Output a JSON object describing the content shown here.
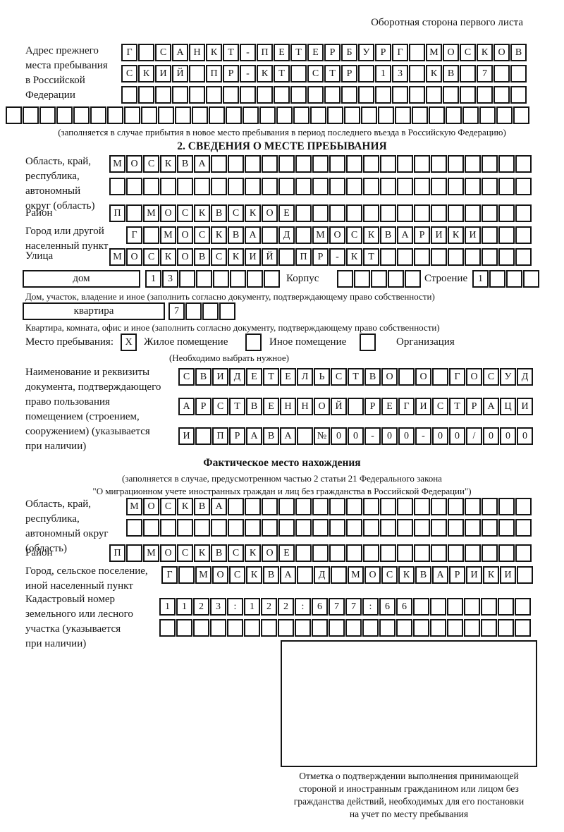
{
  "header": {
    "title": "Оборотная сторона первого листа"
  },
  "prev_address": {
    "label_lines": [
      "Адрес прежнего",
      "места пребывания",
      "в Российской",
      "Федерации"
    ],
    "rows": [
      {
        "text": "Г САНКТ-ПЕТЕРБУРГ МОСКОВ",
        "len": 24
      },
      {
        "text": "СКИЙ ПР-КТ СТР 13 КВ 7",
        "len": 24
      },
      {
        "text": "",
        "len": 24
      },
      {
        "text": "",
        "len": 31
      }
    ],
    "note": "(заполняется в случае прибытия в новое место пребывания в период последнего въезда в Российскую Федерацию)"
  },
  "section2": {
    "title": "2. СВЕДЕНИЯ О МЕСТЕ ПРЕБЫВАНИЯ",
    "region": {
      "label_lines": [
        "Область, край,",
        "республика,",
        "автономный",
        "округ (область)"
      ],
      "rows": [
        {
          "text": "МОСКВА",
          "len": 25
        },
        {
          "text": "",
          "len": 25
        }
      ]
    },
    "district": {
      "label": "Район",
      "row": {
        "text": "П МОСКВСКОЕ",
        "len": 25
      }
    },
    "city": {
      "label_lines": [
        "Город или другой",
        "населенный пункт"
      ],
      "row": {
        "text": "Г МОСКВА Д МОСКВАРИКИ",
        "len": 24
      }
    },
    "street": {
      "label": "Улица",
      "row": {
        "text": "МОСКОВСКИЙ ПР-КТ",
        "len": 25
      }
    },
    "house": {
      "type_label": "дом",
      "row": {
        "text": "13",
        "len": 8
      },
      "korpus_label": "Корпус",
      "korpus_row": {
        "text": "",
        "len": 5
      },
      "stroenie_label": "Строение",
      "stroenie_row": {
        "text": "1",
        "len": 4
      },
      "note": "Дом, участок, владение и иное (заполнить согласно документу, подтверждающему право собственности)"
    },
    "apartment": {
      "type_label": "квартира",
      "row": {
        "text": "7",
        "len": 4
      },
      "note": "Квартира, комната, офис и иное (заполнить согласно документу, подтверждающему право собственности)"
    },
    "stay_type": {
      "label": "Место пребывания:",
      "options": [
        {
          "mark": "X",
          "label": "Жилое помещение"
        },
        {
          "mark": "",
          "label": "Иное помещение"
        },
        {
          "mark": "",
          "label": "Организация"
        }
      ],
      "note": "(Необходимо выбрать нужное)"
    },
    "document": {
      "label_lines": [
        "Наименование и реквизиты",
        "документа, подтверждающего",
        "право пользования",
        "помещением (строением,",
        "сооружением) (указывается",
        "при наличии)"
      ],
      "rows": [
        {
          "text": "СВИДЕТЕЛЬСТВО О ГОСУД",
          "len": 21
        },
        {
          "text": "АРСТВЕННОЙ РЕГИСТРАЦИ",
          "len": 21
        },
        {
          "text": "И ПРАВА №00-00-00/000",
          "len": 21
        }
      ]
    }
  },
  "actual_location": {
    "title": "Фактическое место нахождения",
    "note_lines": [
      "(заполняется в случае, предусмотренном частью 2 статьи 21 Федерального закона",
      "\"О миграционном учете иностранных граждан и лиц без гражданства в Российской Федерации\")"
    ],
    "region": {
      "label_lines": [
        "Область, край,",
        "республика,",
        "автономный округ",
        "(область)"
      ],
      "rows": [
        {
          "text": "МОСКВА",
          "len": 24
        },
        {
          "text": "",
          "len": 24
        }
      ]
    },
    "district": {
      "label": "Район",
      "row": {
        "text": "П МОСКВСКОЕ",
        "len": 25
      }
    },
    "city": {
      "label_lines": [
        "Город, сельское поселение,",
        "иной населенный пункт"
      ],
      "row": {
        "text": "Г МОСКВА Д МОСКВАРИКИ",
        "len": 22
      }
    },
    "cadastral": {
      "label_lines": [
        "Кадастровый номер",
        "земельного или лесного",
        "участка (указывается",
        "при наличии)"
      ],
      "rows": [
        {
          "text": "1123:122:677:66",
          "len": 22
        },
        {
          "text": "",
          "len": 22
        }
      ]
    },
    "stamp_note_lines": [
      "Отметка о подтверждении выполнения принимающей",
      "стороной и иностранным гражданином или лицом без",
      "гражданства действий, необходимых для его постановки",
      "на учет по месту пребывания"
    ]
  }
}
